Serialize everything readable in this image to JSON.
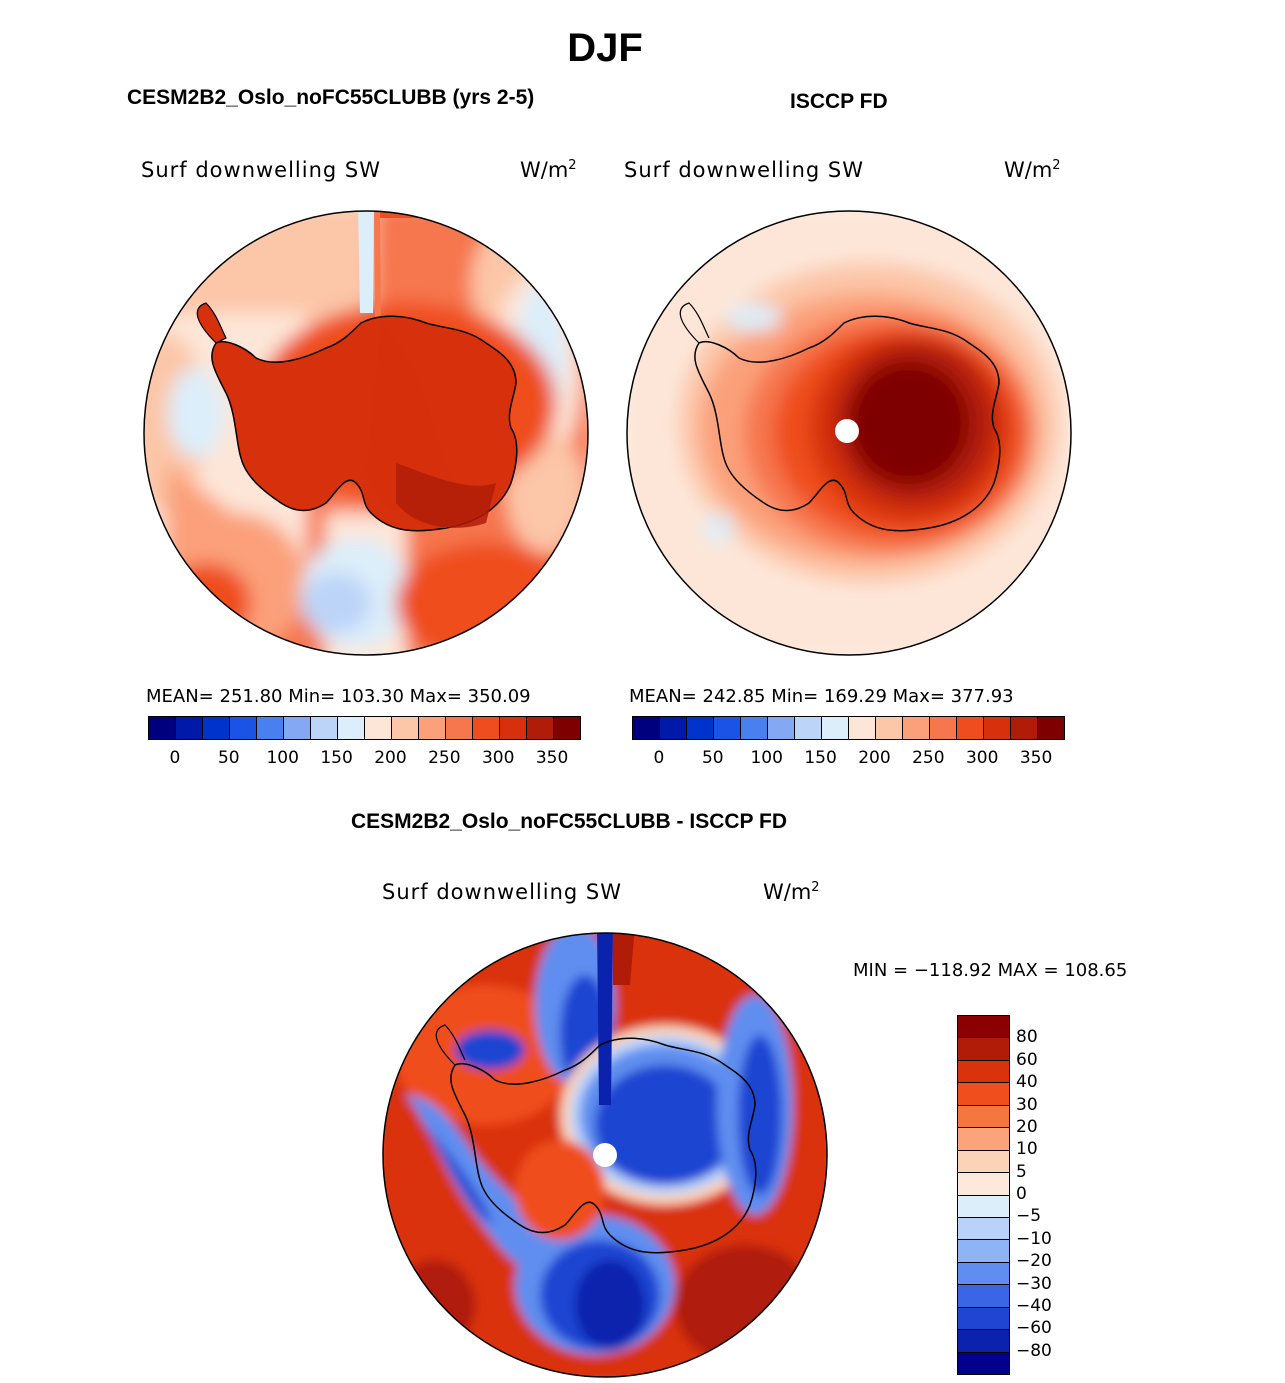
{
  "title": "DJF",
  "panels": {
    "model": {
      "title": "CESM2B2_Oslo_noFC55CLUBB (yrs 2-5)",
      "variable": "Surf downwelling SW",
      "units_base": "W/m",
      "units_exp": "2",
      "stats": "MEAN= 251.80   Min= 103.30   Max= 350.09",
      "map_icon": "south-polar-stereographic-map"
    },
    "obs": {
      "title": "ISCCP FD",
      "variable": "Surf downwelling SW",
      "units_base": "W/m",
      "units_exp": "2",
      "stats": "MEAN= 242.85   Min= 169.29   Max= 377.93",
      "map_icon": "south-polar-stereographic-map"
    },
    "diff": {
      "title": "CESM2B2_Oslo_noFC55CLUBB - ISCCP FD",
      "variable": "Surf downwelling SW",
      "units_base": "W/m",
      "units_exp": "2",
      "stats": "MIN = −118.92  MAX = 108.65",
      "map_icon": "south-polar-stereographic-map"
    }
  },
  "colorbar_main": {
    "labels": [
      "0",
      "50",
      "100",
      "150",
      "200",
      "250",
      "300",
      "350"
    ],
    "colors": [
      "#00007f",
      "#0019a8",
      "#0033cc",
      "#1a53e6",
      "#4a7ff0",
      "#85a8f5",
      "#bcd4f8",
      "#dceefa",
      "#fde6d8",
      "#fcc6a8",
      "#fba07a",
      "#f6764d",
      "#ef4d1f",
      "#d6300c",
      "#b01c08",
      "#7f0000"
    ]
  },
  "colorbar_diff": {
    "labels": [
      "80",
      "60",
      "40",
      "30",
      "20",
      "10",
      "5",
      "0",
      "−5",
      "−10",
      "−20",
      "−30",
      "−40",
      "−60",
      "−80"
    ],
    "colors": [
      "#8b0000",
      "#b01c08",
      "#d9320c",
      "#f04e1c",
      "#f5763f",
      "#fba47c",
      "#fcd2b8",
      "#fde9dc",
      "#dceefa",
      "#b8d2fa",
      "#8fb4f5",
      "#5f8ef0",
      "#3a66e6",
      "#1f45d2",
      "#0b22ad",
      "#00008b"
    ]
  },
  "chart_data": [
    {
      "type": "heatmap",
      "title": "CESM2B2_Oslo_noFC55CLUBB (yrs 2-5)",
      "variable": "Surf downwelling SW",
      "units": "W/m2",
      "season": "DJF",
      "mean": 251.8,
      "min": 103.3,
      "max": 350.09,
      "levels": [
        0,
        50,
        100,
        150,
        200,
        250,
        300,
        350
      ]
    },
    {
      "type": "heatmap",
      "title": "ISCCP FD",
      "variable": "Surf downwelling SW",
      "units": "W/m2",
      "season": "DJF",
      "mean": 242.85,
      "min": 169.29,
      "max": 377.93,
      "levels": [
        0,
        50,
        100,
        150,
        200,
        250,
        300,
        350
      ]
    },
    {
      "type": "heatmap",
      "title": "CESM2B2_Oslo_noFC55CLUBB - ISCCP FD",
      "variable": "Surf downwelling SW",
      "units": "W/m2",
      "season": "DJF",
      "min": -118.92,
      "max": 108.65,
      "levels": [
        80,
        60,
        40,
        30,
        20,
        10,
        5,
        0,
        -5,
        -10,
        -20,
        -30,
        -40,
        -60,
        -80
      ]
    }
  ]
}
